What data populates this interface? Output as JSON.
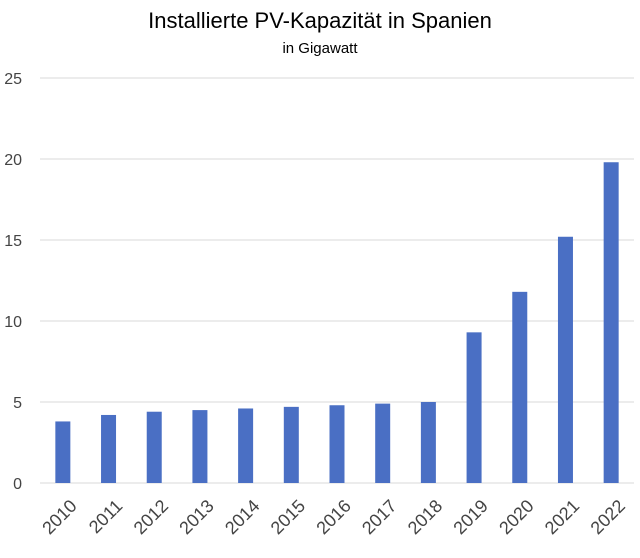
{
  "chart_data": {
    "type": "bar",
    "title": "Installierte PV-Kapazität in Spanien",
    "subtitle": "in Gigawatt",
    "categories": [
      "2010",
      "2011",
      "2012",
      "2013",
      "2014",
      "2015",
      "2016",
      "2017",
      "2018",
      "2019",
      "2020",
      "2021",
      "2022"
    ],
    "values": [
      3.8,
      4.2,
      4.4,
      4.5,
      4.6,
      4.7,
      4.8,
      4.9,
      5.0,
      9.3,
      11.8,
      15.2,
      19.8
    ],
    "ylim": [
      0,
      25
    ],
    "yticks": [
      0,
      5,
      10,
      15,
      20,
      25
    ],
    "grid": true,
    "bar_color": "#4a6fc4",
    "grid_color": "#d9d9d9"
  }
}
